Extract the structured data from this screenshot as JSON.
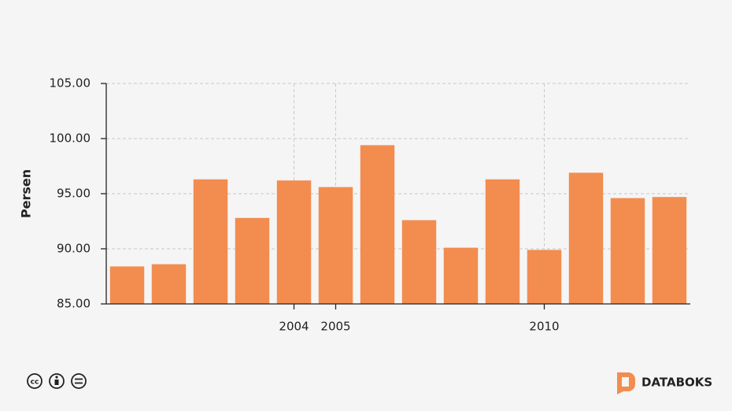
{
  "chart_data": {
    "type": "bar",
    "y_label": "Persen",
    "categories": [
      null,
      null,
      null,
      null,
      "2004",
      "2005",
      null,
      null,
      null,
      null,
      "2010",
      null,
      null,
      null
    ],
    "values": [
      88.4,
      88.6,
      96.3,
      92.8,
      96.2,
      95.6,
      99.4,
      92.6,
      90.1,
      96.3,
      89.9,
      96.9,
      94.6,
      94.7
    ],
    "color": "#f38c4f",
    "ylim": [
      85,
      105
    ],
    "yticks": [
      {
        "value": 85,
        "label": "85.00"
      },
      {
        "value": 90,
        "label": "90.00"
      },
      {
        "value": 95,
        "label": "95.00"
      },
      {
        "value": 100,
        "label": "100.00"
      },
      {
        "value": 105,
        "label": "105.00"
      }
    ],
    "grid": true
  },
  "footer": {
    "brand": "DATABOKS"
  }
}
